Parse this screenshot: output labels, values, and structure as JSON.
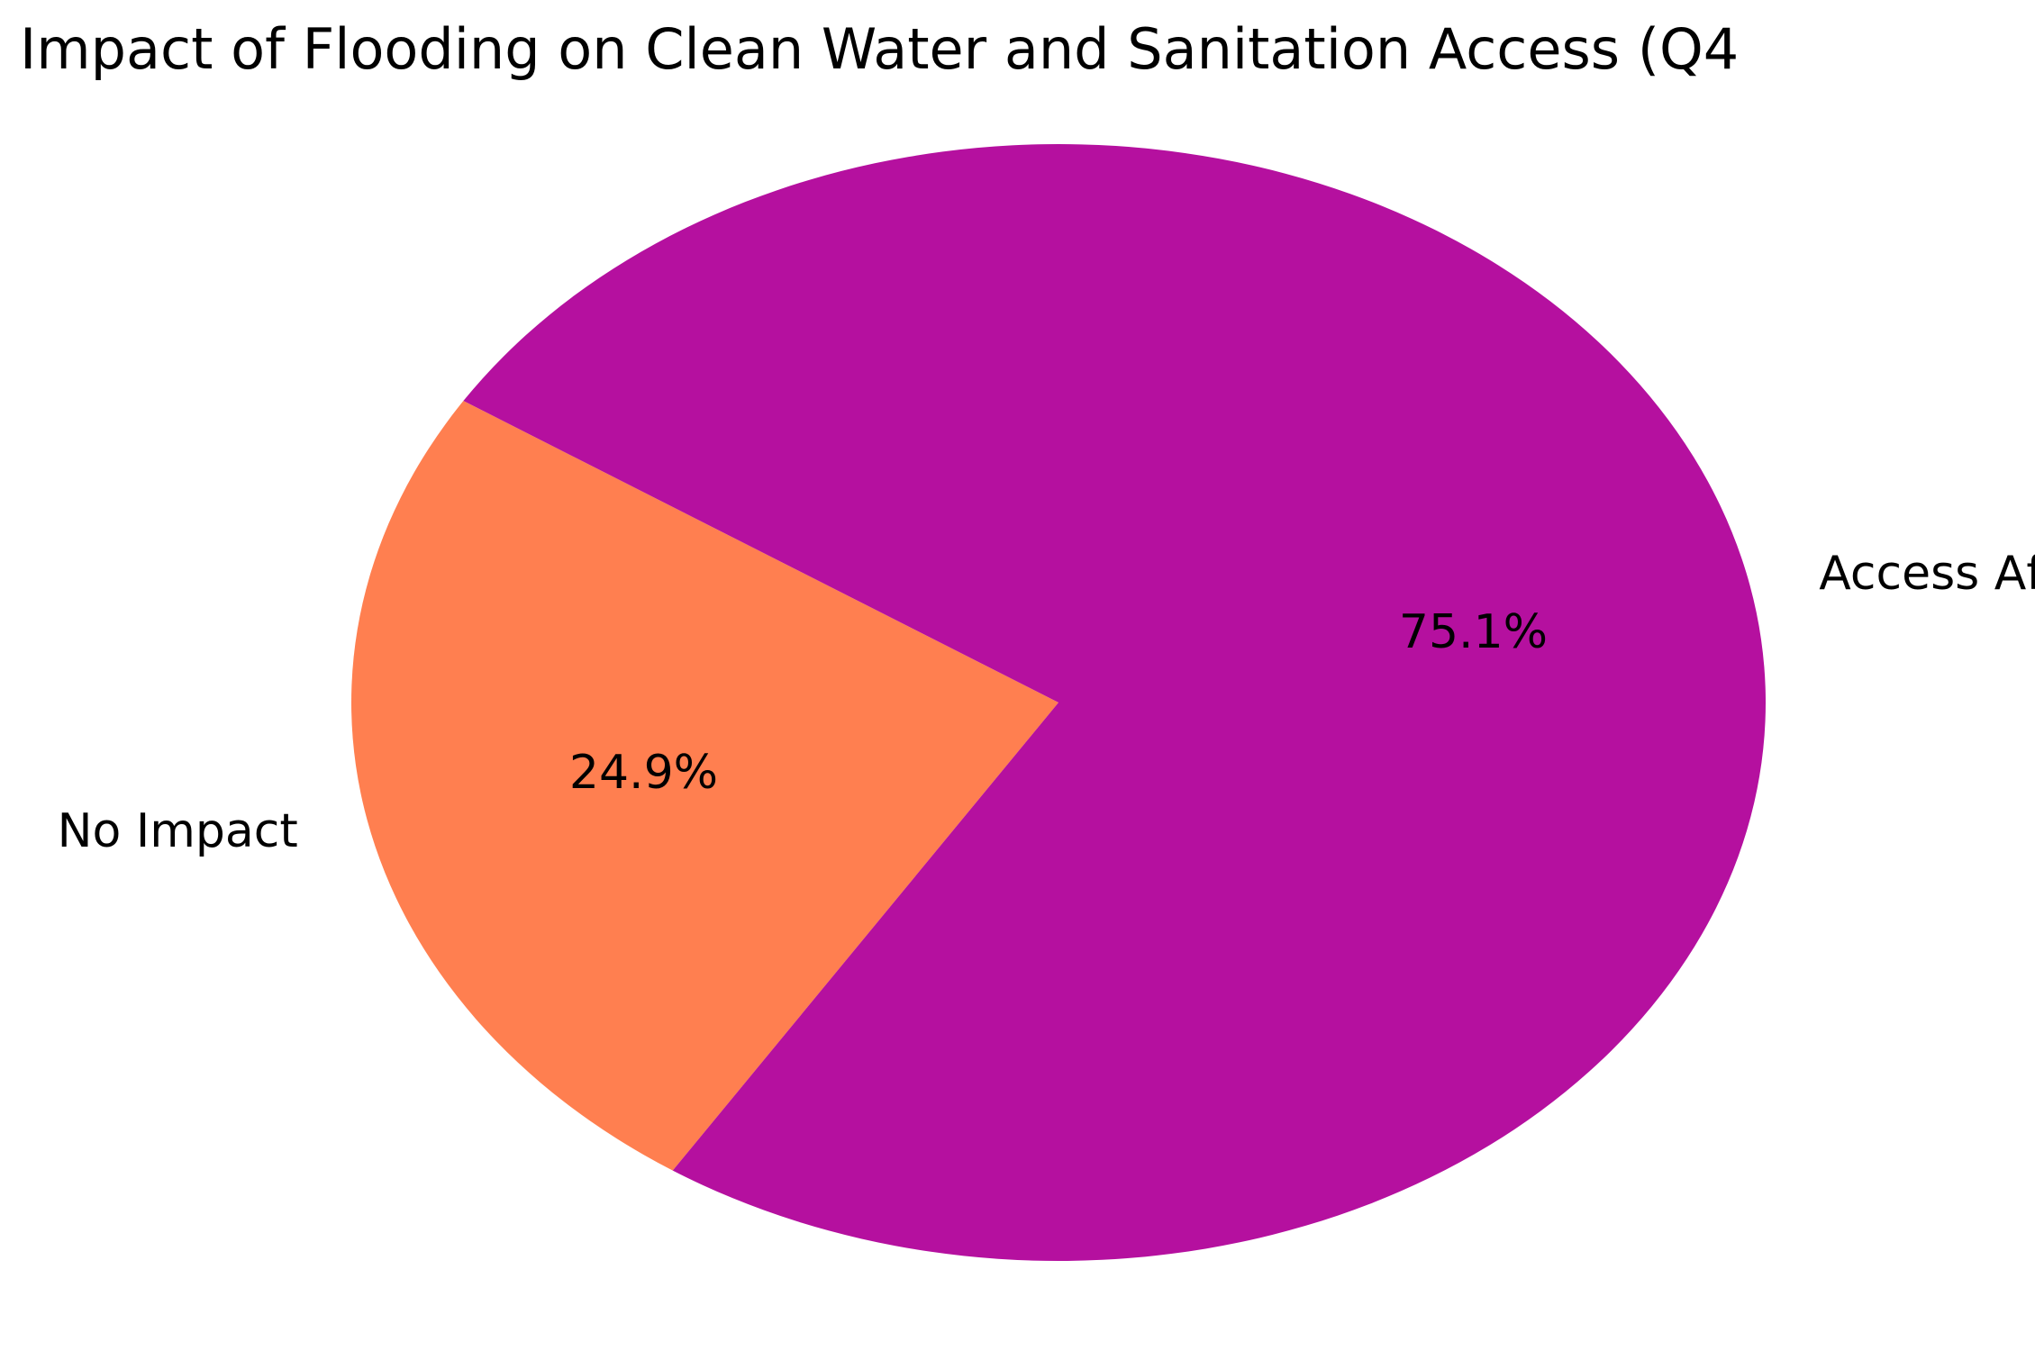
{
  "chart_data": {
    "type": "pie",
    "title": "Impact of Flooding on Clean Water and Sanitation Access (Q4",
    "start_angle_deg": 147.3,
    "slices": [
      {
        "label": "No Impact",
        "value": 24.9,
        "pct_label": "24.9%",
        "color": "#ff7f50"
      },
      {
        "label": "Access Affected",
        "value": 75.1,
        "pct_label": "75.1%",
        "color": "#b5109f"
      }
    ]
  }
}
